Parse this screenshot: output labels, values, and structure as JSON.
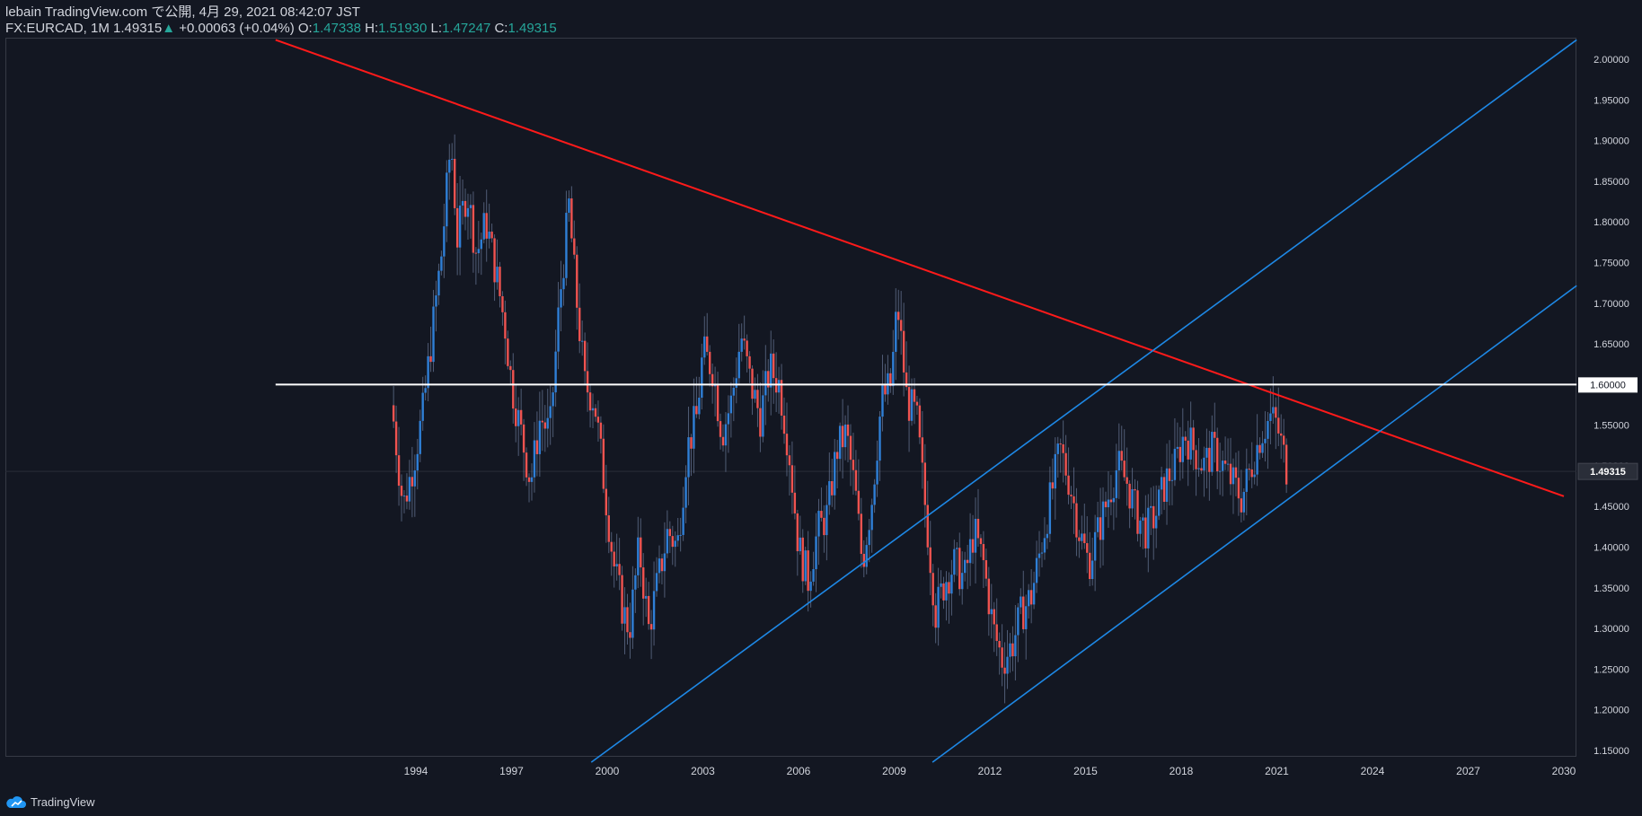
{
  "header": {
    "line1": "lebain TradingView.com で公開, 4月 29, 2021 08:42:07 JST",
    "symbol": "FX:EURCAD, 1M 1.49315",
    "change": "+0.00063 (+0.04%)",
    "o_label": "O:",
    "o_value": "1.47338",
    "h_label": "H:",
    "h_value": "1.51930",
    "l_label": "L:",
    "l_value": "1.47247",
    "c_label": "C:",
    "c_value": "1.49315"
  },
  "footer": {
    "brand": "TradingView"
  },
  "colors": {
    "background": "#131722",
    "up": "#2f7fd6",
    "down": "#ef5350",
    "resistance": "#ff1a1a",
    "channel": "#1e88e5",
    "level": "#ffffff",
    "axis_text": "#d1d4dc",
    "price_tag_bg": "#2a2e39"
  },
  "chart_data": {
    "type": "candlestick",
    "title": "FX:EURCAD, 1M",
    "timeframe": "1M",
    "x_range": [
      1994.0,
      2030.0
    ],
    "ylim": [
      1.1355,
      2.0238
    ],
    "x_ticks": [
      "1994",
      "1997",
      "2000",
      "2003",
      "2006",
      "2009",
      "2012",
      "2015",
      "2018",
      "2021",
      "2024",
      "2027",
      "2030"
    ],
    "y_ticks": [
      "1.15000",
      "1.20000",
      "1.25000",
      "1.30000",
      "1.35000",
      "1.40000",
      "1.45000",
      "1.50000",
      "1.55000",
      "1.60000",
      "1.65000",
      "1.70000",
      "1.75000",
      "1.80000",
      "1.85000",
      "1.90000",
      "1.95000",
      "2.00000"
    ],
    "last_price": "1.49315",
    "level_label": "1.60000",
    "close_series": [
      [
        1993.3,
        1.555
      ],
      [
        1993.6,
        1.45
      ],
      [
        1993.9,
        1.5
      ],
      [
        1994.2,
        1.56
      ],
      [
        1994.5,
        1.66
      ],
      [
        1994.8,
        1.76
      ],
      [
        1995.1,
        1.9
      ],
      [
        1995.3,
        1.78
      ],
      [
        1995.6,
        1.84
      ],
      [
        1995.9,
        1.76
      ],
      [
        1996.2,
        1.8
      ],
      [
        1996.5,
        1.74
      ],
      [
        1996.8,
        1.67
      ],
      [
        1997.0,
        1.6
      ],
      [
        1997.3,
        1.54
      ],
      [
        1997.6,
        1.48
      ],
      [
        1997.9,
        1.56
      ],
      [
        1998.2,
        1.54
      ],
      [
        1998.5,
        1.7
      ],
      [
        1998.8,
        1.82
      ],
      [
        1999.0,
        1.72
      ],
      [
        1999.3,
        1.6
      ],
      [
        1999.6,
        1.58
      ],
      [
        1999.9,
        1.48
      ],
      [
        2000.2,
        1.38
      ],
      [
        2000.5,
        1.32
      ],
      [
        2000.7,
        1.3
      ],
      [
        2001.0,
        1.4
      ],
      [
        2001.3,
        1.3
      ],
      [
        2001.6,
        1.36
      ],
      [
        2001.9,
        1.42
      ],
      [
        2002.2,
        1.4
      ],
      [
        2002.5,
        1.52
      ],
      [
        2002.8,
        1.56
      ],
      [
        2003.0,
        1.64
      ],
      [
        2003.3,
        1.62
      ],
      [
        2003.6,
        1.54
      ],
      [
        2003.9,
        1.58
      ],
      [
        2004.2,
        1.66
      ],
      [
        2004.5,
        1.6
      ],
      [
        2004.8,
        1.56
      ],
      [
        2005.1,
        1.62
      ],
      [
        2005.4,
        1.6
      ],
      [
        2005.7,
        1.52
      ],
      [
        2006.0,
        1.4
      ],
      [
        2006.3,
        1.36
      ],
      [
        2006.6,
        1.42
      ],
      [
        2006.9,
        1.44
      ],
      [
        2007.2,
        1.52
      ],
      [
        2007.5,
        1.54
      ],
      [
        2007.8,
        1.46
      ],
      [
        2008.0,
        1.38
      ],
      [
        2008.3,
        1.46
      ],
      [
        2008.6,
        1.58
      ],
      [
        2008.9,
        1.6
      ],
      [
        2009.1,
        1.7
      ],
      [
        2009.4,
        1.58
      ],
      [
        2009.7,
        1.56
      ],
      [
        2010.0,
        1.44
      ],
      [
        2010.3,
        1.32
      ],
      [
        2010.6,
        1.36
      ],
      [
        2010.9,
        1.38
      ],
      [
        2011.2,
        1.36
      ],
      [
        2011.5,
        1.42
      ],
      [
        2011.8,
        1.38
      ],
      [
        2012.1,
        1.3
      ],
      [
        2012.4,
        1.26
      ],
      [
        2012.7,
        1.28
      ],
      [
        2013.0,
        1.32
      ],
      [
        2013.3,
        1.34
      ],
      [
        2013.6,
        1.4
      ],
      [
        2013.9,
        1.46
      ],
      [
        2014.2,
        1.52
      ],
      [
        2014.5,
        1.48
      ],
      [
        2014.8,
        1.42
      ],
      [
        2015.1,
        1.38
      ],
      [
        2015.4,
        1.42
      ],
      [
        2015.7,
        1.46
      ],
      [
        2016.0,
        1.5
      ],
      [
        2016.3,
        1.48
      ],
      [
        2016.6,
        1.44
      ],
      [
        2016.9,
        1.42
      ],
      [
        2017.2,
        1.44
      ],
      [
        2017.5,
        1.48
      ],
      [
        2017.8,
        1.5
      ],
      [
        2018.1,
        1.54
      ],
      [
        2018.4,
        1.52
      ],
      [
        2018.7,
        1.5
      ],
      [
        2019.0,
        1.52
      ],
      [
        2019.3,
        1.5
      ],
      [
        2019.6,
        1.48
      ],
      [
        2019.9,
        1.46
      ],
      [
        2020.2,
        1.5
      ],
      [
        2020.5,
        1.54
      ],
      [
        2020.8,
        1.56
      ],
      [
        2021.0,
        1.55
      ],
      [
        2021.33,
        1.49315
      ]
    ],
    "drawings": [
      {
        "name": "resistance trendline",
        "color": "red",
        "points": [
          [
            1989.6,
            2.0238
          ],
          [
            2030.0,
            1.4626
          ]
        ]
      },
      {
        "name": "channel upper",
        "color": "blue",
        "points": [
          [
            1999.5,
            1.1355
          ],
          [
            2030.4,
            2.0238
          ]
        ]
      },
      {
        "name": "channel lower",
        "color": "blue",
        "points": [
          [
            2010.2,
            1.1355
          ],
          [
            2030.4,
            1.7215
          ]
        ]
      },
      {
        "name": "horizontal level",
        "color": "white",
        "points": [
          [
            1989.6,
            1.6
          ],
          [
            2030.4,
            1.6
          ]
        ]
      }
    ]
  }
}
